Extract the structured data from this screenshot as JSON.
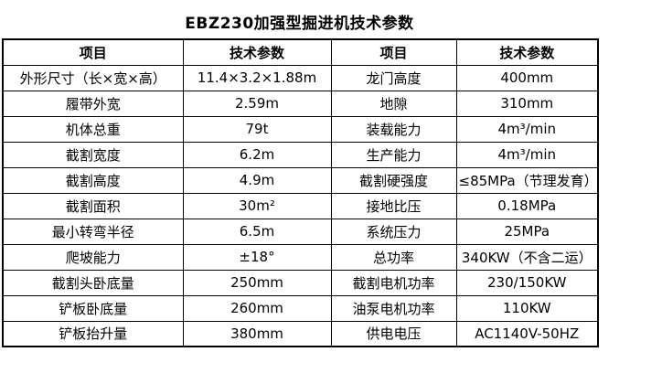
{
  "page": {
    "title": "EBZ230加强型掘进机技术参数"
  },
  "table": {
    "headers": [
      "项目",
      "技术参数",
      "项目",
      "技术参数"
    ],
    "rows": [
      [
        "外形尺寸（长×宽×高）",
        "11.4×3.2×1.88m",
        "龙门高度",
        "400mm"
      ],
      [
        "履带外宽",
        "2.59m",
        "地隙",
        "310mm"
      ],
      [
        "机体总重",
        "79t",
        "装载能力",
        "4m³/min"
      ],
      [
        "截割宽度",
        "6.2m",
        "生产能力",
        "4m³/min"
      ],
      [
        "截割高度",
        "4.9m",
        "截割硬强度",
        "≤85MPa（节理发育）"
      ],
      [
        "截割面积",
        "30m²",
        "接地比压",
        "0.18MPa"
      ],
      [
        "最小转弯半径",
        "6.5m",
        "系统压力",
        "25MPa"
      ],
      [
        "爬坡能力",
        "±18°",
        "总功率",
        "340KW（不含二运）"
      ],
      [
        "截割头卧底量",
        "250mm",
        "截割电机功率",
        "230/150KW"
      ],
      [
        "铲板卧底量",
        "260mm",
        "油泵电机功率",
        "110KW"
      ],
      [
        "铲板抬升量",
        "380mm",
        "供电电压",
        "AC1140V-50HZ"
      ]
    ]
  },
  "colors": {
    "text": "#000000",
    "border": "#000000",
    "background": "#ffffff"
  }
}
